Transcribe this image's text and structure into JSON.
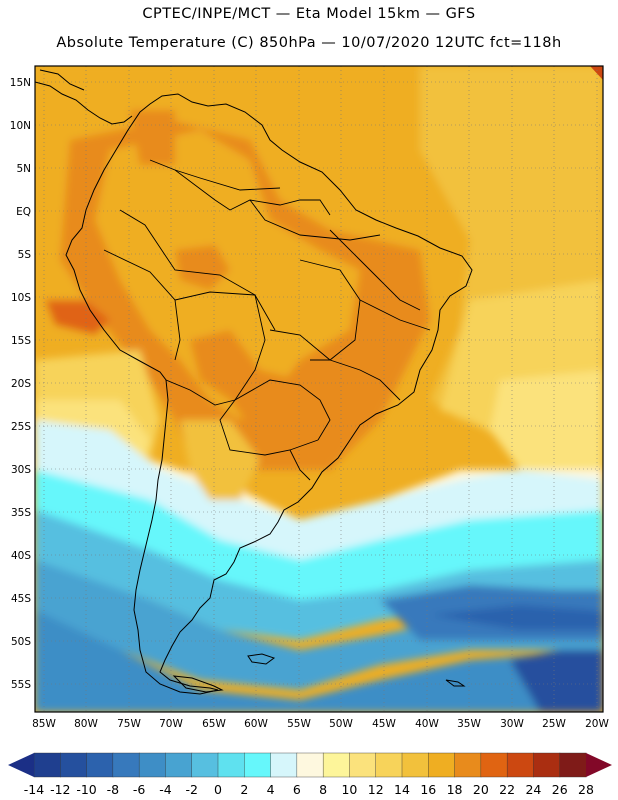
{
  "header": {
    "line1": "CPTEC/INPE/MCT —  Eta Model 15km — GFS",
    "line2": "Absolute Temperature (C) 850hPa — 10/07/2020 12UTC fct=118h"
  },
  "map": {
    "lat_labels": [
      "15N",
      "10N",
      "5N",
      "EQ",
      "5S",
      "10S",
      "15S",
      "20S",
      "25S",
      "30S",
      "35S",
      "40S",
      "45S",
      "50S",
      "55S"
    ],
    "lon_labels": [
      "85W",
      "80W",
      "75W",
      "70W",
      "65W",
      "60W",
      "55W",
      "50W",
      "45W",
      "40W",
      "35W",
      "30W",
      "25W",
      "20W"
    ]
  },
  "colorbar": {
    "labels": [
      "-14",
      "-12",
      "-10",
      "-8",
      "-6",
      "-4",
      "-2",
      "0",
      "2",
      "4",
      "6",
      "8",
      "10",
      "12",
      "14",
      "16",
      "18",
      "20",
      "22",
      "24",
      "26",
      "28"
    ],
    "colors": [
      "#1f3f8f",
      "#25509e",
      "#2c62ad",
      "#3779bc",
      "#3e8ec6",
      "#48a3d1",
      "#57bfe0",
      "#5fe1ef",
      "#66f7fb",
      "#d6f6fb",
      "#fef8df",
      "#fdf59a",
      "#fbe27c",
      "#f7d35a",
      "#f2c13c",
      "#efae22",
      "#e88b1c",
      "#e06412",
      "#cc4811",
      "#aa2e11",
      "#7f1b18"
    ],
    "under_color": "#1b2f86",
    "over_color": "#820828"
  }
}
